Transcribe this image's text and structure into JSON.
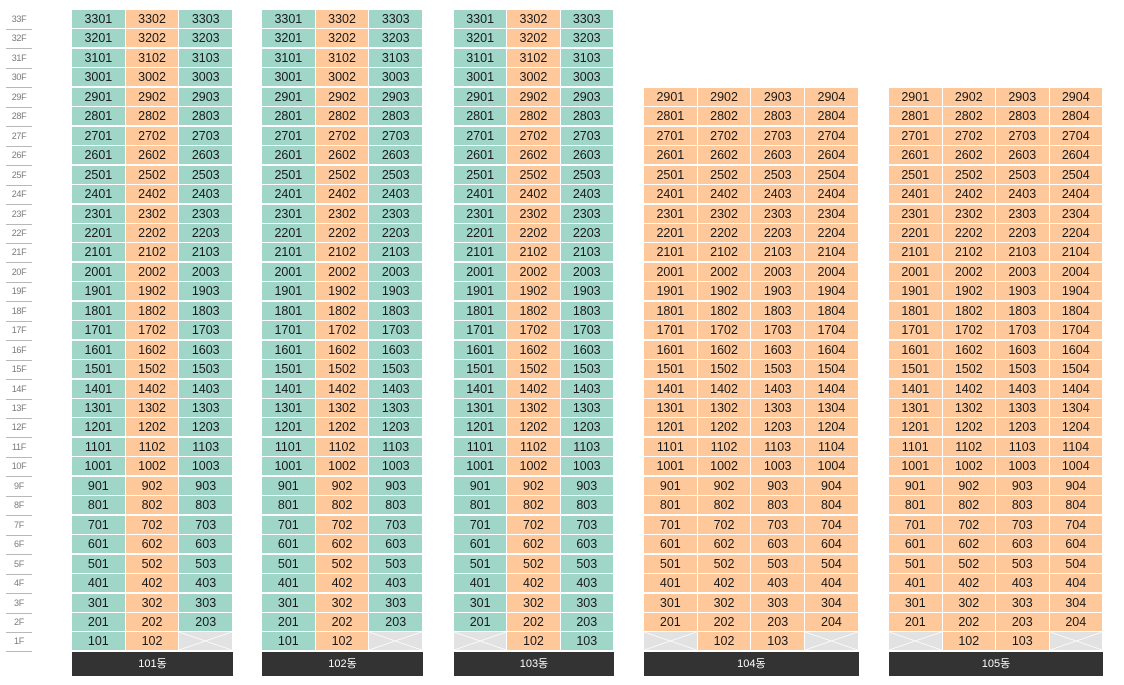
{
  "floors": [
    "33F",
    "32F",
    "31F",
    "30F",
    "29F",
    "28F",
    "27F",
    "26F",
    "25F",
    "24F",
    "23F",
    "22F",
    "21F",
    "20F",
    "19F",
    "18F",
    "17F",
    "16F",
    "15F",
    "14F",
    "13F",
    "12F",
    "11F",
    "10F",
    "9F",
    "8F",
    "7F",
    "6F",
    "5F",
    "4F",
    "3F",
    "2F",
    "1F"
  ],
  "colors": {
    "mint": "#9fd6c7",
    "peach": "#ffc89a",
    "empty": "#e2e2e2",
    "footer": "#333333"
  },
  "buildings": [
    {
      "name": "101동",
      "top_floor": 33,
      "units_per_floor": 3,
      "col_colors": [
        "mint",
        "peach",
        "mint"
      ],
      "ground": [
        "101",
        "102",
        ""
      ]
    },
    {
      "name": "102동",
      "top_floor": 33,
      "units_per_floor": 3,
      "col_colors": [
        "mint",
        "peach",
        "mint"
      ],
      "ground": [
        "101",
        "102",
        ""
      ]
    },
    {
      "name": "103동",
      "top_floor": 33,
      "units_per_floor": 3,
      "col_colors": [
        "mint",
        "peach",
        "mint"
      ],
      "ground": [
        "",
        "102",
        "103"
      ]
    },
    {
      "name": "104동",
      "top_floor": 29,
      "units_per_floor": 4,
      "col_colors": [
        "peach",
        "peach",
        "peach",
        "peach"
      ],
      "ground": [
        "",
        "102",
        "103",
        ""
      ]
    },
    {
      "name": "105동",
      "top_floor": 29,
      "units_per_floor": 4,
      "col_colors": [
        "peach",
        "peach",
        "peach",
        "peach"
      ],
      "ground": [
        "",
        "102",
        "103",
        ""
      ]
    }
  ]
}
